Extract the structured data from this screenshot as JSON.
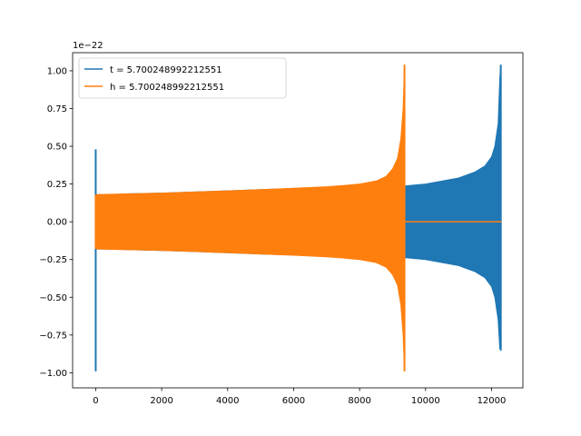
{
  "chart_data": {
    "type": "line",
    "title": "",
    "xlabel": "",
    "ylabel": "",
    "offset_text": "1e−22",
    "xlim": [
      -700,
      12950
    ],
    "ylim": [
      -1.1,
      1.12
    ],
    "y_scale_factor": 1e-22,
    "x_ticks": [
      0,
      2000,
      4000,
      6000,
      8000,
      10000,
      12000
    ],
    "x_tick_labels": [
      "0",
      "2000",
      "4000",
      "6000",
      "8000",
      "10000",
      "12000"
    ],
    "y_ticks": [
      -1.0,
      -0.75,
      -0.5,
      -0.25,
      0.0,
      0.25,
      0.5,
      0.75,
      1.0
    ],
    "y_tick_labels": [
      "−1.00",
      "−0.75",
      "−0.50",
      "−0.25",
      "0.00",
      "0.25",
      "0.50",
      "0.75",
      "1.00"
    ],
    "grid": false,
    "legend_position": "upper-left",
    "series": [
      {
        "name": "t = 5.700248992212551",
        "color": "#1f77b4",
        "spike": {
          "x": 0,
          "min": -0.99,
          "max": 0.48
        },
        "envelope": {
          "x": [
            30,
            500,
            1000,
            2000,
            3000,
            4000,
            5000,
            6000,
            7000,
            8000,
            9000,
            9400,
            10000,
            11000,
            11500,
            11800,
            12000,
            12100,
            12200,
            12250
          ],
          "upper": [
            0.18,
            0.18,
            0.185,
            0.19,
            0.197,
            0.205,
            0.213,
            0.22,
            0.225,
            0.23,
            0.235,
            0.238,
            0.25,
            0.29,
            0.33,
            0.37,
            0.43,
            0.5,
            0.65,
            0.95
          ],
          "lower": [
            -0.18,
            -0.18,
            -0.185,
            -0.19,
            -0.197,
            -0.205,
            -0.213,
            -0.22,
            -0.225,
            -0.23,
            -0.235,
            -0.238,
            -0.25,
            -0.29,
            -0.33,
            -0.37,
            -0.43,
            -0.5,
            -0.65,
            -0.84
          ]
        },
        "merger": {
          "x": 12280,
          "min": -0.85,
          "max": 1.04
        },
        "tail": {
          "x_start": 12280,
          "x_end": 12300,
          "value": 0.0
        }
      },
      {
        "name": "h = 5.700248992212551",
        "color": "#ff7f0e",
        "spike": {
          "x": 0,
          "min": -0.18,
          "max": 0.18
        },
        "envelope": {
          "x": [
            30,
            1000,
            2000,
            3000,
            4000,
            5000,
            6000,
            7000,
            7500,
            8000,
            8500,
            8800,
            9000,
            9150,
            9250,
            9320
          ],
          "upper": [
            0.18,
            0.185,
            0.19,
            0.197,
            0.205,
            0.213,
            0.222,
            0.232,
            0.24,
            0.25,
            0.27,
            0.3,
            0.35,
            0.42,
            0.55,
            0.75
          ],
          "lower": [
            -0.18,
            -0.185,
            -0.19,
            -0.197,
            -0.205,
            -0.213,
            -0.222,
            -0.232,
            -0.24,
            -0.25,
            -0.27,
            -0.3,
            -0.35,
            -0.42,
            -0.55,
            -0.75
          ]
        },
        "merger": {
          "x": 9360,
          "min": -0.99,
          "max": 1.04
        },
        "tail": {
          "x_start": 9360,
          "x_end": 12300,
          "value": 0.0
        }
      }
    ]
  }
}
